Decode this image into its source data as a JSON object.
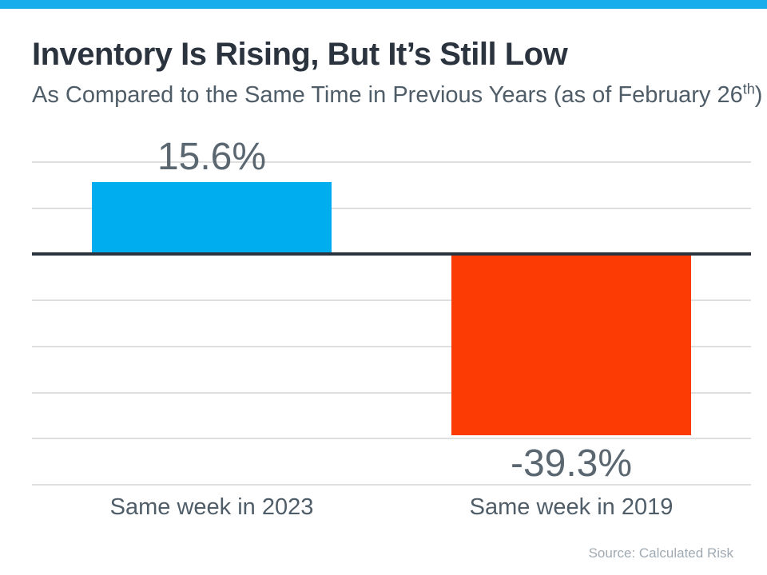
{
  "header": {
    "title": "Inventory Is Rising, But It’s Still Low",
    "subtitle_prefix": "As Compared to the Same Time in Previous Years (as of February 26",
    "subtitle_superscript": "th",
    "subtitle_suffix": ")"
  },
  "source_note": "Source: Calculated Risk",
  "chart_data": {
    "type": "bar",
    "title": "Inventory Is Rising, But It’s Still Low",
    "subtitle": "As Compared to the Same Time in Previous Years (as of February 26th)",
    "categories": [
      "Same week in 2023",
      "Same week in 2019"
    ],
    "values": [
      15.6,
      -39.3
    ],
    "value_labels": [
      "15.6%",
      "-39.3%"
    ],
    "bar_colors": [
      "#00ADEE",
      "#FC3A03"
    ],
    "xlabel": "",
    "ylabel": "",
    "ylim": [
      -50,
      20
    ],
    "gridline_step": 10,
    "grid": true,
    "legend": false,
    "source": "Source: Calculated Risk"
  },
  "style": {
    "topbar_blue": "#17ACEC",
    "title_color": "#2A333E",
    "subtitle_color": "#4F5D68",
    "label_color": "#5B6770",
    "gridline_color": "#DFDFDF",
    "zero_line_color": "#2A333E",
    "source_color": "#A0AAB2",
    "accent_blue": "#00ADEE",
    "accent_red": "#FC3A03"
  }
}
